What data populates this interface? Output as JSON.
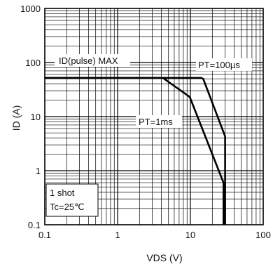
{
  "chart_data": {
    "type": "line",
    "xlabel": "VDS  (V)",
    "ylabel": "ID  (A)",
    "x_scale": "log",
    "y_scale": "log",
    "xlim": [
      0.1,
      100
    ],
    "ylim": [
      0.1,
      1000
    ],
    "grid": true,
    "x_ticks": [
      {
        "value": 0.1,
        "label": "0.1"
      },
      {
        "value": 1,
        "label": "1"
      },
      {
        "value": 10,
        "label": "10"
      },
      {
        "value": 100,
        "label": "100"
      }
    ],
    "y_ticks": [
      {
        "value": 0.1,
        "label": "0.1"
      },
      {
        "value": 1,
        "label": "1"
      },
      {
        "value": 10,
        "label": "10"
      },
      {
        "value": 100,
        "label": "100"
      },
      {
        "value": 1000,
        "label": "1000"
      }
    ],
    "series": [
      {
        "name": "PT=100µs",
        "x": [
          0.1,
          14,
          15,
          30,
          30
        ],
        "y": [
          52,
          52,
          50,
          4.3,
          0.1
        ]
      },
      {
        "name": "PT=1ms",
        "x": [
          0.1,
          4.2,
          9.8,
          28.5,
          28.5
        ],
        "y": [
          52,
          52,
          23,
          0.6,
          0.1
        ]
      }
    ],
    "annotations": {
      "pulse_max": "ID(pulse)  MAX",
      "pt_100us": "PT=100µs",
      "pt_1ms": "PT=1ms",
      "conditions": [
        "1 shot",
        "Tc=25℃"
      ]
    }
  }
}
